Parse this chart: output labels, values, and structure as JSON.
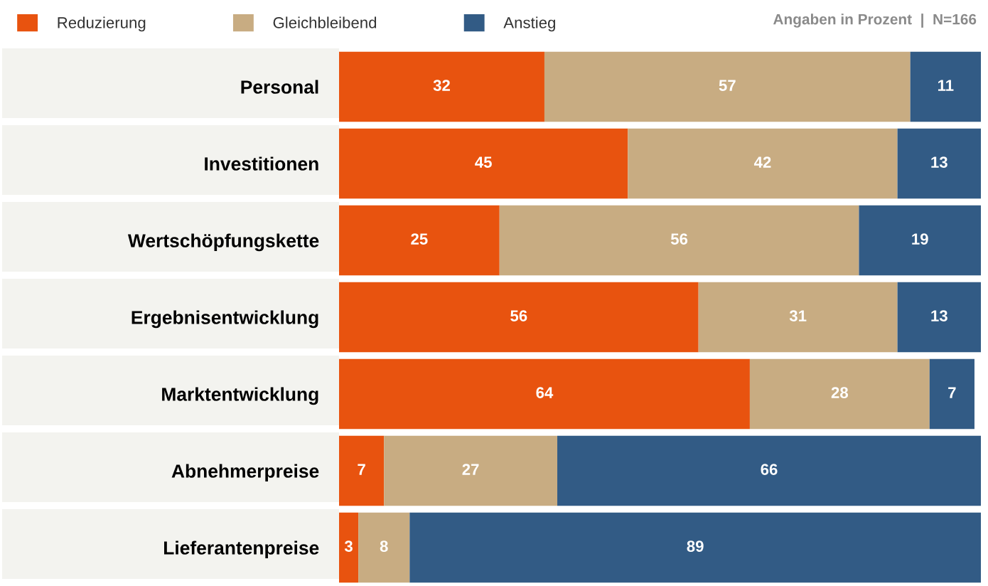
{
  "chart_data": {
    "type": "bar",
    "orientation": "horizontal",
    "stacked": true,
    "data_labels": true,
    "legend": "top left",
    "grid": false,
    "tick_labels": "y",
    "annotations": [
      "Angaben in Prozent  |  N=166"
    ],
    "categories": [
      "Personal",
      "Investitionen",
      "Wertschöpfungskette",
      "Ergebnisentwicklung",
      "Marktentwicklung",
      "Abnehmerpreise",
      "Lieferantenpreise"
    ],
    "series": [
      {
        "name": "Reduzierung",
        "color": "#e8530f",
        "values": [
          32,
          45,
          25,
          56,
          64,
          7,
          3
        ]
      },
      {
        "name": "Gleichbleibend",
        "color": "#c8ac82",
        "values": [
          57,
          42,
          56,
          31,
          28,
          27,
          8
        ]
      },
      {
        "name": "Anstieg",
        "color": "#325b85",
        "values": [
          11,
          13,
          19,
          13,
          7,
          66,
          89
        ]
      }
    ]
  }
}
